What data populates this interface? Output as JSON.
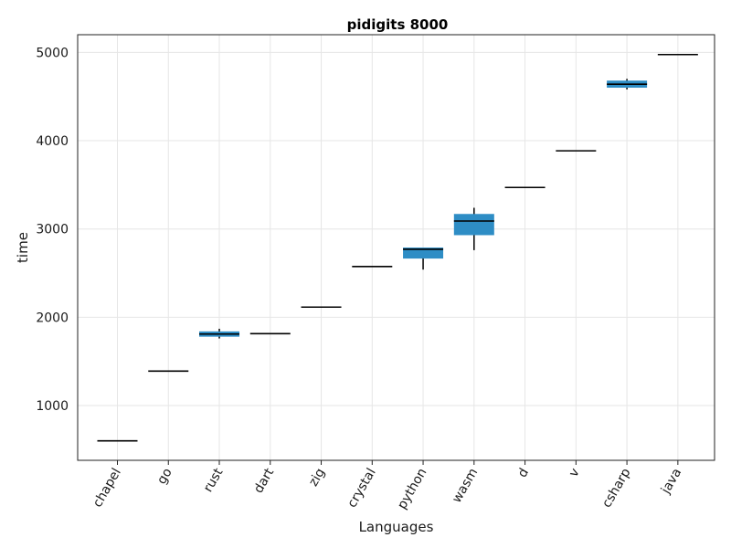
{
  "chart_data": {
    "type": "box",
    "title": "pidigits 8000",
    "xlabel": "Languages",
    "ylabel": "time",
    "ylim": [
      380,
      5200
    ],
    "yticks": [
      1000,
      2000,
      3000,
      4000,
      5000
    ],
    "grid": true,
    "box_color": "#2e8dc5",
    "categories": [
      "chapel",
      "go",
      "rust",
      "dart",
      "zig",
      "crystal",
      "python",
      "wasm",
      "d",
      "v",
      "csharp",
      "java"
    ],
    "series": [
      {
        "boxes": [
          {
            "min": 600,
            "q1": 600,
            "median": 600,
            "q3": 600,
            "max": 600
          },
          {
            "min": 1390,
            "q1": 1390,
            "median": 1390,
            "q3": 1390,
            "max": 1390
          },
          {
            "min": 1760,
            "q1": 1780,
            "median": 1810,
            "q3": 1840,
            "max": 1870
          },
          {
            "min": 1815,
            "q1": 1815,
            "median": 1815,
            "q3": 1815,
            "max": 1815
          },
          {
            "min": 2115,
            "q1": 2115,
            "median": 2115,
            "q3": 2115,
            "max": 2115
          },
          {
            "min": 2575,
            "q1": 2575,
            "median": 2575,
            "q3": 2575,
            "max": 2575
          },
          {
            "min": 2540,
            "q1": 2665,
            "median": 2770,
            "q3": 2790,
            "max": 2790
          },
          {
            "min": 2760,
            "q1": 2930,
            "median": 3090,
            "q3": 3170,
            "max": 3240
          },
          {
            "min": 3470,
            "q1": 3470,
            "median": 3470,
            "q3": 3470,
            "max": 3470
          },
          {
            "min": 3885,
            "q1": 3885,
            "median": 3885,
            "q3": 3885,
            "max": 3885
          },
          {
            "min": 4580,
            "q1": 4600,
            "median": 4640,
            "q3": 4680,
            "max": 4700
          },
          {
            "min": 4975,
            "q1": 4975,
            "median": 4975,
            "q3": 4975,
            "max": 4975
          }
        ]
      }
    ]
  }
}
